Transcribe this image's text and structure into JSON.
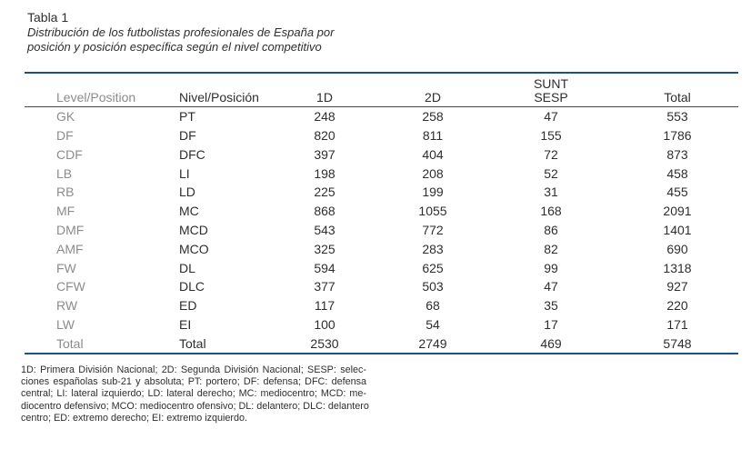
{
  "caption": {
    "label": "Tabla 1",
    "subtitle_line1": "Distribución de los futbolistas profesionales de España por",
    "subtitle_line2": "posición y posición específica según el nivel competitivo"
  },
  "table": {
    "headers": {
      "col_level": "Level/Position",
      "col_nivel": "Nivel/Posición",
      "col_1d": "1D",
      "col_2d": "2D",
      "col_sesp_line1": "SUNT",
      "col_sesp_line2": "SESP",
      "col_total": "Total"
    },
    "rows": [
      {
        "en": "GK",
        "es": "PT",
        "d1": "248",
        "d2": "258",
        "sesp": "47",
        "total": "553"
      },
      {
        "en": "DF",
        "es": "DF",
        "d1": "820",
        "d2": "811",
        "sesp": "155",
        "total": "1786"
      },
      {
        "en": "CDF",
        "es": "DFC",
        "d1": "397",
        "d2": "404",
        "sesp": "72",
        "total": "873"
      },
      {
        "en": "LB",
        "es": "LI",
        "d1": "198",
        "d2": "208",
        "sesp": "52",
        "total": "458"
      },
      {
        "en": "RB",
        "es": "LD",
        "d1": "225",
        "d2": "199",
        "sesp": "31",
        "total": "455"
      },
      {
        "en": "MF",
        "es": "MC",
        "d1": "868",
        "d2": "1055",
        "sesp": "168",
        "total": "2091"
      },
      {
        "en": "DMF",
        "es": "MCD",
        "d1": "543",
        "d2": "772",
        "sesp": "86",
        "total": "1401"
      },
      {
        "en": "AMF",
        "es": "MCO",
        "d1": "325",
        "d2": "283",
        "sesp": "82",
        "total": "690"
      },
      {
        "en": "FW",
        "es": "DL",
        "d1": "594",
        "d2": "625",
        "sesp": "99",
        "total": "1318"
      },
      {
        "en": "CFW",
        "es": "DLC",
        "d1": "377",
        "d2": "503",
        "sesp": "47",
        "total": "927"
      },
      {
        "en": "RW",
        "es": "ED",
        "d1": "117",
        "d2": "68",
        "sesp": "35",
        "total": "220"
      },
      {
        "en": "LW",
        "es": "EI",
        "d1": "100",
        "d2": "54",
        "sesp": "17",
        "total": "171"
      },
      {
        "en": "Total",
        "es": "Total",
        "d1": "2530",
        "d2": "2749",
        "sesp": "469",
        "total": "5748"
      }
    ]
  },
  "footnote": {
    "lines": [
      "1D: Primera División Nacional; 2D: Segunda División Nacional; SESP: selec-",
      "ciones españolas sub-21 y absoluta; PT: portero; DF: defensa; DFC: defensa",
      "central; LI: lateral izquierdo; LD: lateral derecho; MC: mediocentro; MCD: me-",
      "diocentro defensivo; MCO: mediocentro ofensivo; DL: delantero; DLC: delantero",
      "centro; ED: extremo derecho; EI: extremo izquierdo."
    ]
  },
  "colors": {
    "rule": "#1d5383",
    "text_primary": "#2e2e2e",
    "text_muted": "#8c8c8c"
  }
}
